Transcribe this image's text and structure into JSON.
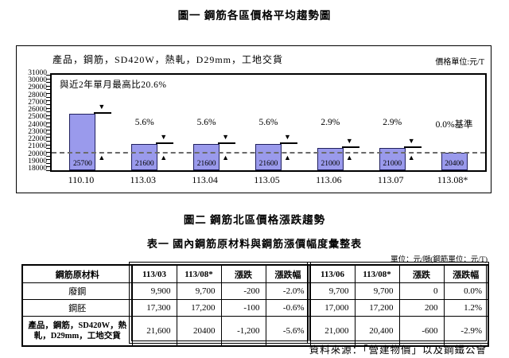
{
  "page": {
    "fig1_title": "圖一 鋼筋各區價格平均趨勢圖",
    "fig2_title": "圖二 鋼筋北區價格漲跌趨勢",
    "table_title": "表一 國內鋼筋原材料與鋼筋漲價幅度彙整表",
    "table_unit": "單位：元/噸(鋼筋單位：元/T)",
    "source": "資料來源：「營建物價」以及鋼鐵公會"
  },
  "chart_data": {
    "type": "bar",
    "title": "圖一 鋼筋各區價格平均趨勢圖",
    "product_label": "產品，鋼筋，SD420W，熱軋，D29mm，工地交貨",
    "unit_label": "價格單位:元/T",
    "annotation": "與近2年單月最高比20.6%",
    "categories": [
      "110.10",
      "113.03",
      "113.04",
      "113.05",
      "113.06",
      "113.07",
      "113.08*"
    ],
    "values": [
      25700,
      21600,
      21600,
      21600,
      21000,
      21000,
      20400
    ],
    "bar_labels": [
      "25700",
      "21600",
      "21600",
      "21600",
      "21000",
      "21000",
      "20400"
    ],
    "pct_labels": [
      "",
      "5.6%",
      "5.6%",
      "5.6%",
      "2.9%",
      "2.9%",
      "0.0%基準"
    ],
    "markers": [
      true,
      true,
      true,
      true,
      true,
      true,
      false
    ],
    "baseline": 20400,
    "ylim": [
      18000,
      31000
    ],
    "yticks": [
      31000,
      30000,
      29000,
      28000,
      27000,
      26000,
      25000,
      24000,
      23000,
      22000,
      21000,
      20000,
      19000,
      18000
    ],
    "minor_tick_step": 500,
    "grid": false,
    "bar_color": "#9a9aec",
    "bar_border_color": "#20205e",
    "baseline_style": "dashed"
  },
  "table": {
    "col_headers": [
      "鋼筋原材料",
      "113/03",
      "113/08*",
      "漲跌",
      "漲跌幅",
      "113/06",
      "113/08*",
      "漲跌",
      "漲跌幅"
    ],
    "rows": [
      {
        "label": "廢鋼",
        "values": [
          "9,900",
          "9,700",
          "-200",
          "-2.0%",
          "9,700",
          "9,700",
          "0",
          "0.0%"
        ]
      },
      {
        "label": "鋼胚",
        "values": [
          "17,300",
          "17,200",
          "-100",
          "-0.6%",
          "17,000",
          "17,200",
          "200",
          "1.2%"
        ]
      },
      {
        "label": "產品，鋼筋，SD420W，熱軋，D29mm，工地交貨",
        "values": [
          "21,600",
          "20400",
          "-1,200",
          "-5.6%",
          "21,000",
          "20,400",
          "-600",
          "-2.9%"
        ],
        "tall": true
      }
    ]
  }
}
